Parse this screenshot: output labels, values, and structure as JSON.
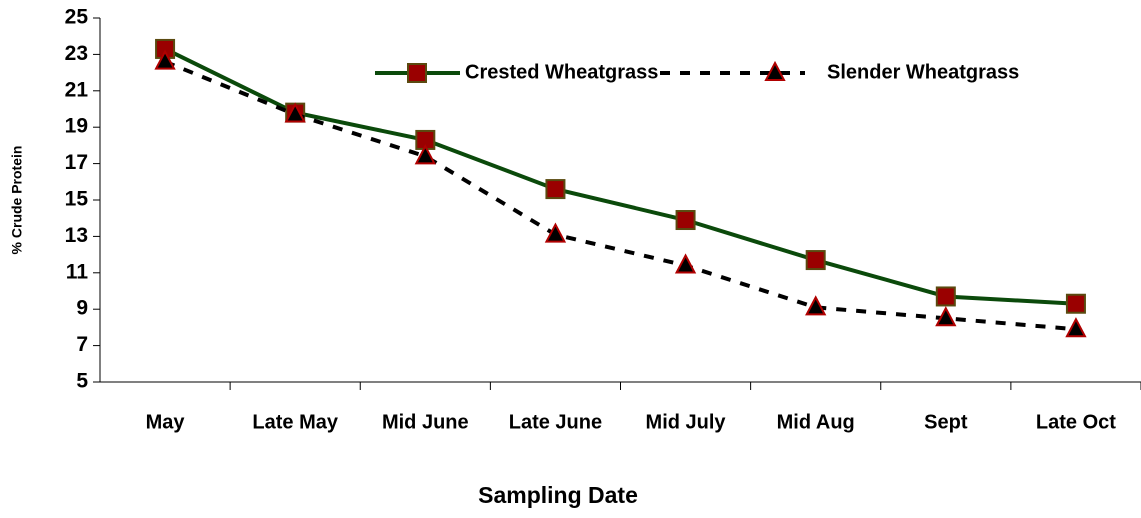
{
  "chart_data": {
    "type": "line",
    "x_label": "Sampling Date",
    "y_label": "% Crude Protein",
    "categories": [
      "May",
      "Late May",
      "Mid June",
      "Late June",
      "Mid July",
      "Mid Aug",
      "Sept",
      "Late Oct"
    ],
    "series": [
      {
        "name": "Crested Wheatgrass",
        "color": "#0b4a0b",
        "marker": "square",
        "marker_color": "#9a0000",
        "dash": false,
        "values": [
          23.3,
          19.8,
          18.3,
          15.6,
          13.9,
          11.7,
          9.7,
          9.3
        ]
      },
      {
        "name": "Slender Wheatgrass",
        "color": "#000000",
        "marker": "triangle",
        "marker_color": "#000000",
        "dash": true,
        "values": [
          22.6,
          19.7,
          17.4,
          13.1,
          11.4,
          9.1,
          8.5,
          7.9
        ]
      }
    ],
    "ylim": [
      5,
      25
    ],
    "yticks": [
      5,
      7,
      9,
      11,
      13,
      15,
      17,
      19,
      21,
      23,
      25
    ],
    "grid": false,
    "legend": "upper center"
  }
}
